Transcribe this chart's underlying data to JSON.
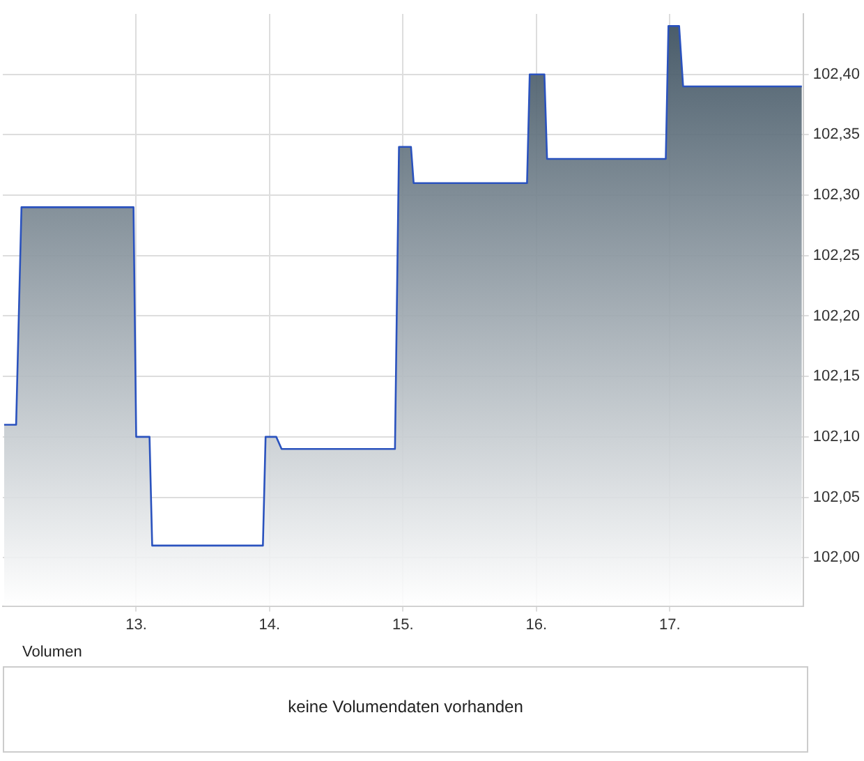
{
  "chart_data": [
    {
      "type": "area",
      "x": [
        12.01,
        12.1,
        12.14,
        12.98,
        13.0,
        13.1,
        13.12,
        13.95,
        13.97,
        14.05,
        14.09,
        14.94,
        14.97,
        15.06,
        15.08,
        15.93,
        15.95,
        16.06,
        16.08,
        16.97,
        16.99,
        17.07,
        17.1,
        17.99
      ],
      "series": [
        {
          "color": "#2a52be",
          "values": [
            102.11,
            102.11,
            102.29,
            102.29,
            102.1,
            102.1,
            102.01,
            102.01,
            102.1,
            102.1,
            102.09,
            102.09,
            102.34,
            102.34,
            102.31,
            102.31,
            102.4,
            102.4,
            102.33,
            102.33,
            102.44,
            102.44,
            102.39,
            102.39
          ]
        }
      ],
      "xlim": [
        12,
        18
      ],
      "xticks": [
        {
          "value": 13,
          "label": "13."
        },
        {
          "value": 14,
          "label": "14."
        },
        {
          "value": 15,
          "label": "15."
        },
        {
          "value": 16,
          "label": "16."
        },
        {
          "value": 17,
          "label": "17."
        }
      ],
      "ylim": [
        101.96,
        102.45
      ],
      "yticks": [
        {
          "value": 102,
          "label": "102,00"
        },
        {
          "value": 102.05,
          "label": "102,05"
        },
        {
          "value": 102.1,
          "label": "102,10"
        },
        {
          "value": 102.15,
          "label": "102,15"
        },
        {
          "value": 102.2,
          "label": "102,20"
        },
        {
          "value": 102.25,
          "label": "102,25"
        },
        {
          "value": 102.3,
          "label": "102,30"
        },
        {
          "value": 102.35,
          "label": "102,35"
        },
        {
          "value": 102.4,
          "label": "102,40"
        }
      ],
      "grid": true,
      "legend": false
    },
    {
      "type": "other",
      "title": "Volumen",
      "annotations": [
        "keine Volumendaten vorhanden"
      ]
    }
  ]
}
